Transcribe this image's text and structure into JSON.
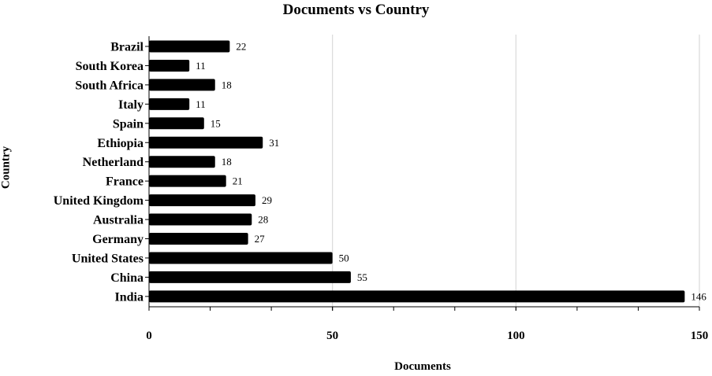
{
  "chart_data": {
    "type": "bar",
    "orientation": "horizontal",
    "title": "Documents vs Country",
    "xlabel": "Documents",
    "ylabel": "Country",
    "categories": [
      "Brazil",
      "South Korea",
      "South Africa",
      "Italy",
      "Spain",
      "Ethiopia",
      "Netherland",
      "France",
      "United Kingdom",
      "Australia",
      "Germany",
      "United States",
      "China",
      "India"
    ],
    "values": [
      22,
      11,
      18,
      11,
      15,
      31,
      18,
      21,
      29,
      28,
      27,
      50,
      55,
      146
    ],
    "xlim": [
      0,
      150
    ],
    "xticks": [
      0,
      50,
      100,
      150
    ],
    "grid": "vertical major gridlines",
    "legend": "none",
    "bar_color": "#000000",
    "grid_color": "#d9d9d9"
  }
}
